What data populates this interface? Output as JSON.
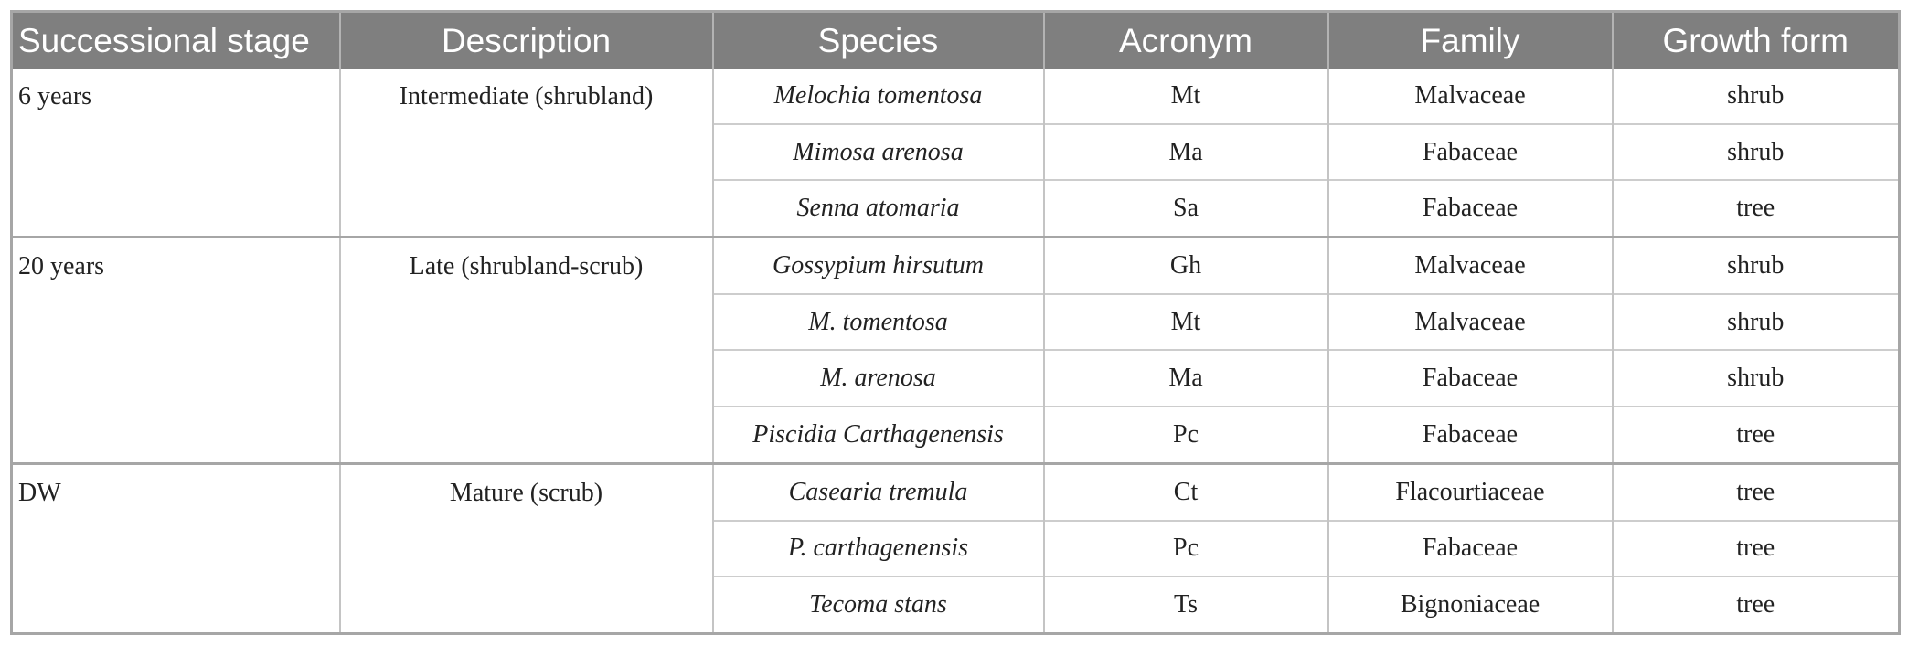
{
  "headers": {
    "stage": "Successional stage",
    "description": "Description",
    "species": "Species",
    "acronym": "Acronym",
    "family": "Family",
    "growth_form": "Growth form"
  },
  "groups": [
    {
      "stage": "6 years",
      "description": "Intermediate (shrubland)",
      "rows": [
        {
          "species": "Melochia tomentosa",
          "acronym": "Mt",
          "family": "Malvaceae",
          "growth_form": "shrub"
        },
        {
          "species": "Mimosa arenosa",
          "acronym": "Ma",
          "family": "Fabaceae",
          "growth_form": "shrub"
        },
        {
          "species": "Senna atomaria",
          "acronym": "Sa",
          "family": "Fabaceae",
          "growth_form": "tree"
        }
      ]
    },
    {
      "stage": "20 years",
      "description": "Late (shrubland-scrub)",
      "rows": [
        {
          "species": "Gossypium hirsutum",
          "acronym": "Gh",
          "family": "Malvaceae",
          "growth_form": "shrub"
        },
        {
          "species": "M. tomentosa",
          "acronym": "Mt",
          "family": "Malvaceae",
          "growth_form": "shrub"
        },
        {
          "species": "M. arenosa",
          "acronym": "Ma",
          "family": "Fabaceae",
          "growth_form": "shrub"
        },
        {
          "species": "Piscidia Carthagenensis",
          "acronym": "Pc",
          "family": "Fabaceae",
          "growth_form": "tree"
        }
      ]
    },
    {
      "stage": "DW",
      "description": "Mature (scrub)",
      "rows": [
        {
          "species": "Casearia tremula",
          "acronym": "Ct",
          "family": "Flacourtiaceae",
          "growth_form": "tree"
        },
        {
          "species": "P. carthagenensis",
          "acronym": "Pc",
          "family": "Fabaceae",
          "growth_form": "tree"
        },
        {
          "species": "Tecoma stans",
          "acronym": "Ts",
          "family": "Bignoniaceae",
          "growth_form": "tree"
        }
      ]
    }
  ]
}
